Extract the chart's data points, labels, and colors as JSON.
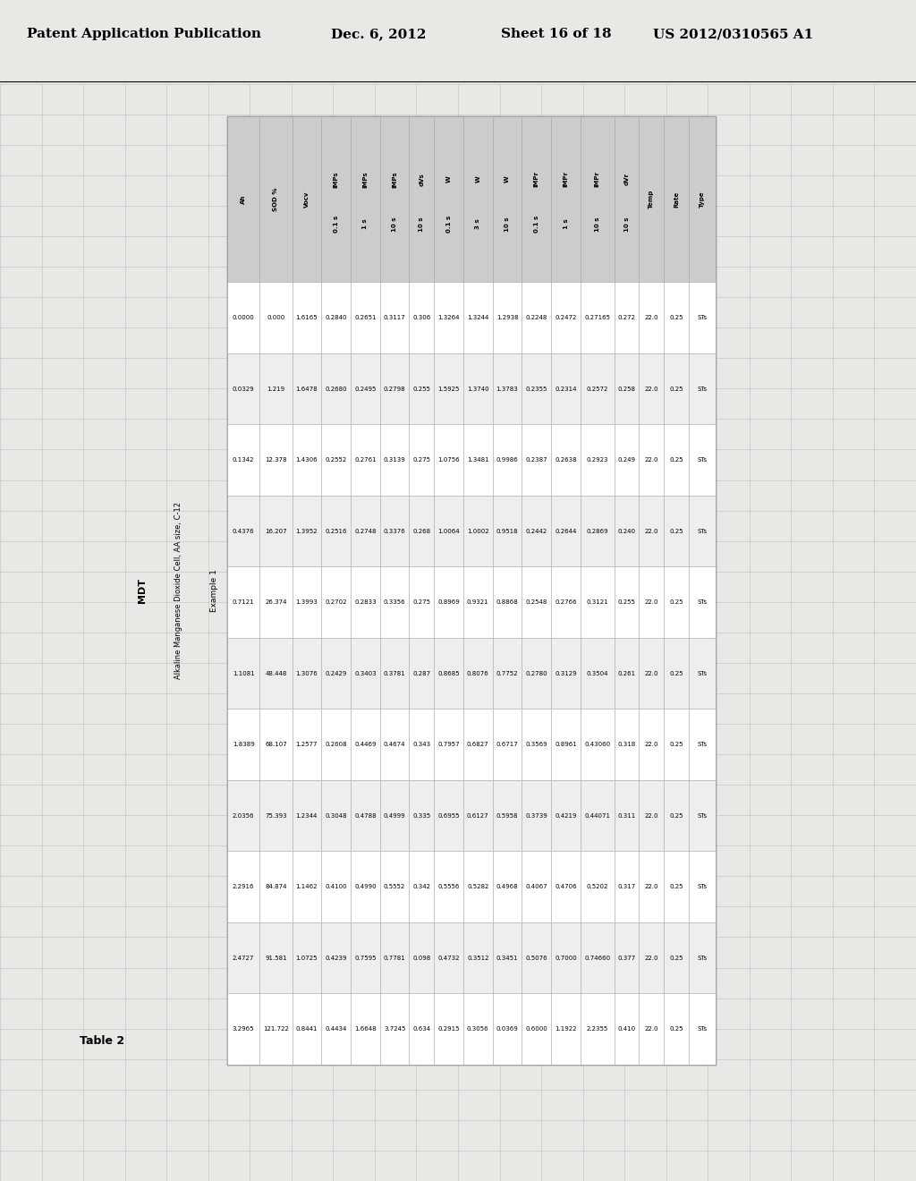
{
  "header_line1": "Patent Application Publication",
  "header_date": "Dec. 6, 2012",
  "header_sheet": "Sheet 16 of 18",
  "header_patent": "US 2012/0310565 A1",
  "table_title": "Table 2",
  "table_subtitle": "MDT",
  "table_cell_subtitle": "Alkaline Manganese Dioxide Cell, AA size, C-12",
  "table_example": "Example 1",
  "col_headers_top": [
    "",
    "",
    "",
    "Type",
    "Rate",
    "Temp",
    "dVr\n10 s",
    "IMPr\n10 s",
    "IMPr\n1 s",
    "IMPr\n0.1 s",
    "W\n10 s",
    "W\n3 s",
    "W\n0.1 s",
    "dVs\n10 s",
    "IMPs\n10 s",
    "IMPs\n1 s",
    "IMPs\n0.1 s",
    "Vocv",
    "SOD %",
    "Ah"
  ],
  "col_headers": [
    "Ah",
    "SOD %",
    "Vocv",
    "IMPs\n0.1 s",
    "IMPs\n1 s",
    "IMPs\n10 s",
    "dVs\n10 s",
    "W\n0.1 s",
    "W\n3 s",
    "W\n10 s",
    "IMPr\n0.1 s",
    "IMPr\n1 s",
    "IMPr\n10 s",
    "dVr\n10 s",
    "Temp",
    "Rate",
    "Type"
  ],
  "rows": [
    [
      "0.0000",
      "0.000",
      "1.6165",
      "0.2840",
      "0.2651",
      "0.3117",
      "0.306",
      "1.3264",
      "1.3244",
      "1.2938",
      "0.2248",
      "0.2472",
      "0.27165",
      "0.272",
      "22.0",
      "0.25",
      "STs"
    ],
    [
      "0.0329",
      "1.219",
      "1.6478",
      "0.2680",
      "0.2495",
      "0.2798",
      "0.255",
      "1.5925",
      "1.3740",
      "1.3783",
      "0.2355",
      "0.2314",
      "0.2572",
      "0.258",
      "22.0",
      "0.25",
      "STs"
    ],
    [
      "0.1342",
      "12.378",
      "1.4306",
      "0.2552",
      "0.2761",
      "0.3139",
      "0.275",
      "1.0756",
      "1.3481",
      "0.9986",
      "0.2387",
      "0.2638",
      "0.2923",
      "0.249",
      "22.0",
      "0.25",
      "STs"
    ],
    [
      "0.4376",
      "16.207",
      "1.3952",
      "0.2516",
      "0.2748",
      "0.3376",
      "0.268",
      "1.0064",
      "1.0002",
      "0.9518",
      "0.2442",
      "0.2644",
      "0.2869",
      "0.240",
      "22.0",
      "0.25",
      "STs"
    ],
    [
      "0.7121",
      "26.374",
      "1.3993",
      "0.2702",
      "0.2833",
      "0.3356",
      "0.275",
      "0.8969",
      "0.9321",
      "0.8868",
      "0.2548",
      "0.2766",
      "0.3121",
      "0.255",
      "22.0",
      "0.25",
      "STs"
    ],
    [
      "1.1081",
      "48.448",
      "1.3076",
      "0.2429",
      "0.3403",
      "0.3781",
      "0.287",
      "0.8685",
      "0.8076",
      "0.7752",
      "0.2780",
      "0.3129",
      "0.3504",
      "0.261",
      "22.0",
      "0.25",
      "STs"
    ],
    [
      "1.8389",
      "68.107",
      "1.2577",
      "0.2608",
      "0.4469",
      "0.4674",
      "0.343",
      "0.7957",
      "0.6827",
      "0.6717",
      "0.3569",
      "0.8961",
      "0.43060",
      "0.318",
      "22.0",
      "0.25",
      "STs"
    ],
    [
      "2.0356",
      "75.393",
      "1.2344",
      "0.3048",
      "0.4788",
      "0.4999",
      "0.335",
      "0.6955",
      "0.6127",
      "0.5958",
      "0.3739",
      "0.4219",
      "0.44071",
      "0.311",
      "22.0",
      "0.25",
      "STs"
    ],
    [
      "2.2916",
      "84.874",
      "1.1462",
      "0.4100",
      "0.4990",
      "0.5552",
      "0.342",
      "0.5556",
      "0.5282",
      "0.4968",
      "0.4067",
      "0.4706",
      "0.5202",
      "0.317",
      "22.0",
      "0.25",
      "STs"
    ],
    [
      "2.4727",
      "91.581",
      "1.0725",
      "0.4239",
      "0.7595",
      "0.7781",
      "0.098",
      "0.4732",
      "0.3512",
      "0.3451",
      "0.5076",
      "0.7000",
      "0.74660",
      "0.377",
      "22.0",
      "0.25",
      "STs"
    ],
    [
      "3.2965",
      "121.722",
      "0.8441",
      "0.4434",
      "1.6648",
      "3.7245",
      "0.634",
      "0.2915",
      "0.3056",
      "0.0369",
      "0.6000",
      "1.1922",
      "2.2355",
      "0.410",
      "22.0",
      "0.25",
      "STs"
    ]
  ],
  "page_bg": "#e8e8e4",
  "grid_color": "#b8b8b8",
  "table_border_color": "#555555",
  "cell_line_color": "#aaaaaa",
  "header_bg": "#cccccc",
  "row_bg_even": "#ffffff",
  "row_bg_odd": "#eeeeee"
}
